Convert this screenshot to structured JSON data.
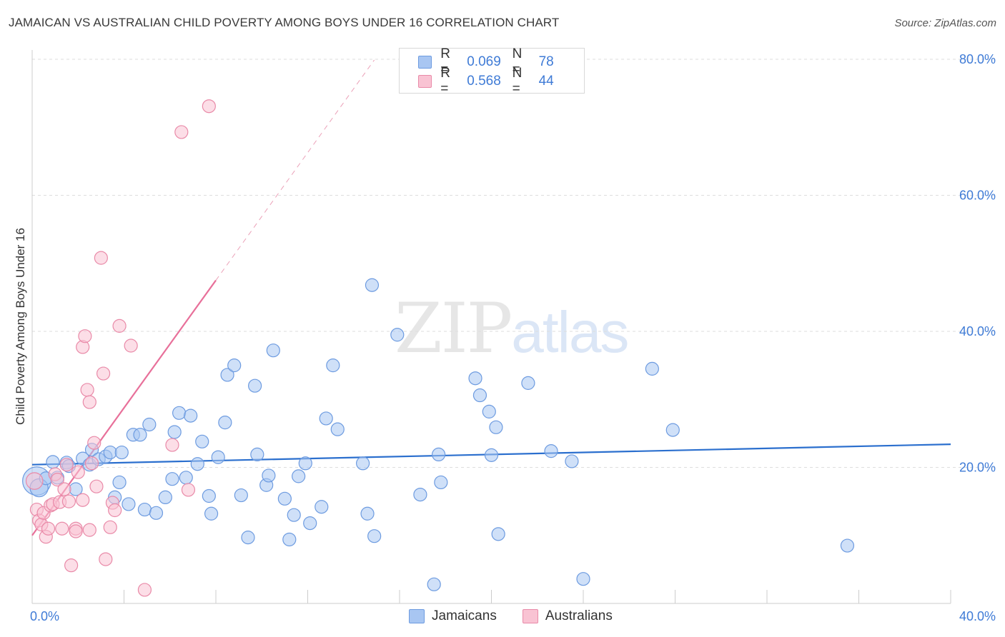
{
  "header": {
    "title": "JAMAICAN VS AUSTRALIAN CHILD POVERTY AMONG BOYS UNDER 16 CORRELATION CHART",
    "source": "Source: ZipAtlas.com"
  },
  "watermark": {
    "zip": "ZIP",
    "atlas": "atlas"
  },
  "legend": {
    "rows": [
      {
        "r_label": "R =",
        "r_value": "0.069",
        "n_label": "N =",
        "n_value": "78",
        "color": "#a8c6f2",
        "border": "#6d9be0"
      },
      {
        "r_label": "R =",
        "r_value": "0.568",
        "n_label": "N =",
        "n_value": "44",
        "color": "#f9c3d3",
        "border": "#e98aa8"
      }
    ]
  },
  "bottom_legend": {
    "items": [
      "Jamaicans",
      "Australians"
    ]
  },
  "chart_data": {
    "type": "scatter",
    "title": "JAMAICAN VS AUSTRALIAN CHILD POVERTY AMONG BOYS UNDER 16 CORRELATION CHART",
    "xlabel": "",
    "ylabel": "Child Poverty Among Boys Under 16",
    "xlim": [
      0,
      40
    ],
    "ylim": [
      0,
      82
    ],
    "x_tick_labels": [
      {
        "value": 0,
        "label": "0.0%"
      },
      {
        "value": 40,
        "label": "40.0%"
      }
    ],
    "y_tick_labels": [
      {
        "value": 20,
        "label": "20.0%"
      },
      {
        "value": 40,
        "label": "40.0%"
      },
      {
        "value": 60,
        "label": "60.0%"
      },
      {
        "value": 80,
        "label": "80.0%"
      }
    ],
    "x_minor_ticks": [
      4,
      8,
      12,
      16,
      20,
      24,
      28,
      32,
      36,
      40
    ],
    "grid": true,
    "legend_position": "top-center",
    "series": [
      {
        "name": "Jamaicans",
        "color": "#6d9be0",
        "fill": "#a8c6f2",
        "points": [
          [
            0.2,
            18.0,
            2.2
          ],
          [
            0.3,
            17.0,
            1.4
          ],
          [
            0.6,
            18.4,
            1
          ],
          [
            0.9,
            20.8,
            1
          ],
          [
            1.1,
            18.5,
            1
          ],
          [
            1.5,
            20.7,
            1
          ],
          [
            1.6,
            20.2,
            1
          ],
          [
            1.9,
            16.8,
            1
          ],
          [
            2.2,
            21.3,
            1
          ],
          [
            2.5,
            20.4,
            1
          ],
          [
            2.6,
            22.6,
            1
          ],
          [
            2.9,
            21.2,
            1
          ],
          [
            3.2,
            21.6,
            1
          ],
          [
            3.4,
            22.2,
            1
          ],
          [
            3.6,
            15.6,
            1
          ],
          [
            3.8,
            17.8,
            1
          ],
          [
            3.9,
            22.2,
            1
          ],
          [
            4.2,
            14.6,
            1
          ],
          [
            4.4,
            24.8,
            1
          ],
          [
            4.7,
            24.8,
            1
          ],
          [
            4.9,
            13.8,
            1
          ],
          [
            5.1,
            26.3,
            1
          ],
          [
            5.4,
            13.3,
            1
          ],
          [
            5.8,
            15.6,
            1
          ],
          [
            6.1,
            18.3,
            1
          ],
          [
            6.2,
            25.2,
            1
          ],
          [
            6.4,
            28.0,
            1
          ],
          [
            6.7,
            18.5,
            1
          ],
          [
            6.9,
            27.6,
            1
          ],
          [
            7.2,
            20.5,
            1
          ],
          [
            7.4,
            23.8,
            1
          ],
          [
            7.7,
            15.8,
            1
          ],
          [
            7.8,
            13.2,
            1
          ],
          [
            8.1,
            21.5,
            1
          ],
          [
            8.4,
            26.6,
            1
          ],
          [
            8.5,
            33.6,
            1
          ],
          [
            8.8,
            35.0,
            1
          ],
          [
            9.1,
            15.9,
            1
          ],
          [
            9.4,
            9.7,
            1
          ],
          [
            9.7,
            32.0,
            1
          ],
          [
            9.8,
            21.9,
            1
          ],
          [
            10.2,
            17.4,
            1
          ],
          [
            10.3,
            18.8,
            1
          ],
          [
            10.5,
            37.2,
            1
          ],
          [
            11.0,
            15.4,
            1
          ],
          [
            11.2,
            9.4,
            1
          ],
          [
            11.4,
            13.0,
            1
          ],
          [
            11.6,
            18.7,
            1
          ],
          [
            11.9,
            20.6,
            1
          ],
          [
            12.1,
            11.8,
            1
          ],
          [
            12.6,
            14.2,
            1
          ],
          [
            12.8,
            27.2,
            1
          ],
          [
            13.1,
            35.0,
            1
          ],
          [
            13.3,
            25.6,
            1
          ],
          [
            14.4,
            20.6,
            1
          ],
          [
            14.6,
            13.2,
            1
          ],
          [
            14.8,
            46.8,
            1
          ],
          [
            14.9,
            9.9,
            1
          ],
          [
            15.9,
            39.5,
            1
          ],
          [
            16.9,
            16.0,
            1
          ],
          [
            17.5,
            2.8,
            1
          ],
          [
            17.7,
            21.9,
            1
          ],
          [
            17.8,
            17.8,
            1
          ],
          [
            19.3,
            33.1,
            1
          ],
          [
            19.5,
            30.6,
            1
          ],
          [
            19.9,
            28.2,
            1
          ],
          [
            20.0,
            21.8,
            1
          ],
          [
            20.2,
            25.9,
            1
          ],
          [
            20.3,
            10.2,
            1
          ],
          [
            21.6,
            32.4,
            1
          ],
          [
            22.6,
            22.4,
            1
          ],
          [
            23.5,
            20.9,
            1
          ],
          [
            24.0,
            3.6,
            1
          ],
          [
            27.0,
            34.5,
            1
          ],
          [
            27.9,
            25.5,
            1
          ],
          [
            35.5,
            8.5,
            1
          ]
        ]
      },
      {
        "name": "Australians",
        "color": "#e98aa8",
        "fill": "#f9c3d3",
        "points": [
          [
            0.1,
            18.0,
            1.3
          ],
          [
            0.2,
            13.8,
            1
          ],
          [
            0.3,
            12.2,
            1
          ],
          [
            0.4,
            11.6,
            1
          ],
          [
            0.5,
            13.3,
            1
          ],
          [
            0.6,
            9.8,
            1
          ],
          [
            0.7,
            11.0,
            1
          ],
          [
            0.8,
            14.4,
            1
          ],
          [
            0.9,
            14.6,
            1
          ],
          [
            1.0,
            19.0,
            1
          ],
          [
            1.1,
            18.2,
            1
          ],
          [
            1.2,
            14.9,
            1
          ],
          [
            1.3,
            11.0,
            1
          ],
          [
            1.4,
            16.8,
            1
          ],
          [
            1.5,
            20.4,
            1
          ],
          [
            1.6,
            15.0,
            1
          ],
          [
            1.7,
            5.6,
            1
          ],
          [
            1.9,
            11.0,
            1
          ],
          [
            1.9,
            10.6,
            1
          ],
          [
            2.0,
            19.3,
            1
          ],
          [
            2.2,
            37.7,
            1
          ],
          [
            2.2,
            15.2,
            1
          ],
          [
            2.3,
            39.3,
            1
          ],
          [
            2.4,
            31.4,
            1
          ],
          [
            2.5,
            29.6,
            1
          ],
          [
            2.5,
            10.8,
            1
          ],
          [
            2.6,
            20.6,
            1
          ],
          [
            2.7,
            23.6,
            1
          ],
          [
            2.8,
            17.2,
            1
          ],
          [
            3.0,
            50.8,
            1
          ],
          [
            3.1,
            33.8,
            1
          ],
          [
            3.2,
            6.5,
            1
          ],
          [
            3.4,
            11.2,
            1
          ],
          [
            3.5,
            14.8,
            1
          ],
          [
            3.6,
            13.7,
            1
          ],
          [
            3.8,
            40.8,
            1
          ],
          [
            4.3,
            37.9,
            1
          ],
          [
            4.9,
            2.0,
            1
          ],
          [
            6.1,
            23.3,
            1
          ],
          [
            6.5,
            69.3,
            1
          ],
          [
            6.8,
            16.7,
            1
          ],
          [
            7.7,
            73.1,
            1
          ]
        ]
      }
    ],
    "trend_lines": [
      {
        "series": "Jamaicans",
        "x": [
          0,
          40
        ],
        "y": [
          20.4,
          23.4
        ],
        "style": "solid"
      },
      {
        "series": "Australians",
        "x": [
          0,
          8
        ],
        "y": [
          10.0,
          47.5
        ],
        "style": "solid"
      },
      {
        "series": "Australians",
        "x": [
          8,
          14.9
        ],
        "y": [
          47.5,
          79.9
        ],
        "style": "dashed"
      }
    ]
  }
}
